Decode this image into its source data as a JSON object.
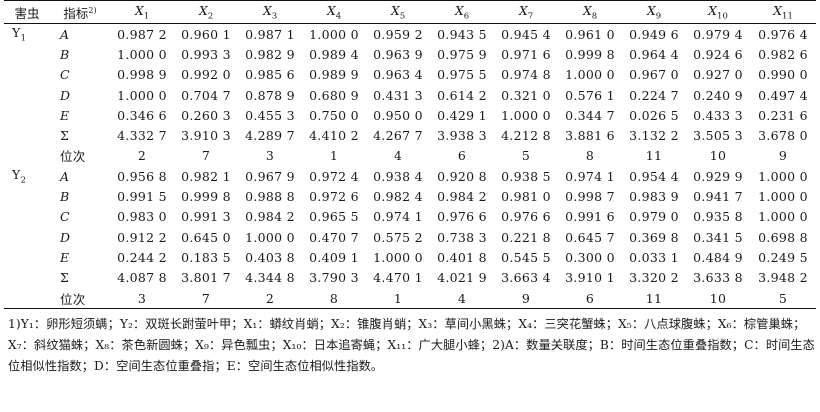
{
  "header": {
    "pest": "害虫",
    "indicator": "指标",
    "indicator_sup": "2)",
    "x_prefix": "X",
    "columns": [
      "1",
      "2",
      "3",
      "4",
      "5",
      "6",
      "7",
      "8",
      "9",
      "10",
      "11"
    ]
  },
  "groups": [
    {
      "pest_letter": "Y",
      "pest_sub": "1",
      "rows": [
        {
          "label": "A",
          "values": [
            "0.987 2",
            "0.960 1",
            "0.987 1",
            "1.000 0",
            "0.959 2",
            "0.943 5",
            "0.945 4",
            "0.961 0",
            "0.949 6",
            "0.979 4",
            "0.976 4"
          ]
        },
        {
          "label": "B",
          "values": [
            "1.000 0",
            "0.993 3",
            "0.982 9",
            "0.989 4",
            "0.963 9",
            "0.975 9",
            "0.971 6",
            "0.999 8",
            "0.964 4",
            "0.924 6",
            "0.982 6"
          ]
        },
        {
          "label": "C",
          "values": [
            "0.998 9",
            "0.992 0",
            "0.985 6",
            "0.989 9",
            "0.963 4",
            "0.975 5",
            "0.974 8",
            "1.000 0",
            "0.967 0",
            "0.927 0",
            "0.990 0"
          ]
        },
        {
          "label": "D",
          "values": [
            "1.000 0",
            "0.704 7",
            "0.878 9",
            "0.680 9",
            "0.431 3",
            "0.614 2",
            "0.321 0",
            "0.576 1",
            "0.224 7",
            "0.240 9",
            "0.497 4"
          ]
        },
        {
          "label": "E",
          "values": [
            "0.346 6",
            "0.260 3",
            "0.455 3",
            "0.750 0",
            "0.950 0",
            "0.429 1",
            "1.000 0",
            "0.344 7",
            "0.026 5",
            "0.433 3",
            "0.231 6"
          ]
        },
        {
          "label": "Σ",
          "values": [
            "4.332 7",
            "3.910 3",
            "4.289 7",
            "4.410 2",
            "4.267 7",
            "3.938 3",
            "4.212 8",
            "3.881 6",
            "3.132 2",
            "3.505 3",
            "3.678 0"
          ]
        },
        {
          "label": "位次",
          "values": [
            "2",
            "7",
            "3",
            "1",
            "4",
            "6",
            "5",
            "8",
            "11",
            "10",
            "9"
          ]
        }
      ]
    },
    {
      "pest_letter": "Y",
      "pest_sub": "2",
      "rows": [
        {
          "label": "A",
          "values": [
            "0.956 8",
            "0.982 1",
            "0.967 9",
            "0.972 4",
            "0.938 4",
            "0.920 8",
            "0.938 5",
            "0.974 1",
            "0.954 4",
            "0.929 9",
            "1.000 0"
          ]
        },
        {
          "label": "B",
          "values": [
            "0.991 5",
            "0.999 8",
            "0.988 8",
            "0.972 6",
            "0.982 4",
            "0.984 2",
            "0.981 0",
            "0.998 7",
            "0.983 9",
            "0.941 7",
            "1.000 0"
          ]
        },
        {
          "label": "C",
          "values": [
            "0.983 0",
            "0.991 3",
            "0.984 2",
            "0.965 5",
            "0.974 1",
            "0.976 6",
            "0.976 6",
            "0.991 6",
            "0.979 0",
            "0.935 8",
            "1.000 0"
          ]
        },
        {
          "label": "D",
          "values": [
            "0.912 2",
            "0.645 0",
            "1.000 0",
            "0.470 7",
            "0.575 2",
            "0.738 3",
            "0.221 8",
            "0.645 7",
            "0.369 8",
            "0.341 5",
            "0.698 8"
          ]
        },
        {
          "label": "E",
          "values": [
            "0.244 2",
            "0.183 5",
            "0.403 8",
            "0.409 1",
            "1.000 0",
            "0.401 8",
            "0.545 5",
            "0.300 0",
            "0.033 1",
            "0.484 9",
            "0.249 5"
          ]
        },
        {
          "label": "Σ",
          "values": [
            "4.087 8",
            "3.801 7",
            "4.344 8",
            "3.790 3",
            "4.470 1",
            "4.021 9",
            "3.663 4",
            "3.910 1",
            "3.320 2",
            "3.633 8",
            "3.948 2"
          ]
        },
        {
          "label": "位次",
          "values": [
            "3",
            "7",
            "2",
            "8",
            "1",
            "4",
            "9",
            "6",
            "11",
            "10",
            "5"
          ]
        }
      ]
    }
  ],
  "footnote": "1)Y₁：卵形短须螨；Y₂：双斑长跗萤叶甲；X₁：蟒纹肖蛸；X₂：锥腹肖蛸；X₃：草间小黑蛛；X₄：三突花蟹蛛；X₅：八点球腹蛛；X₆：棕管巢蛛；X₇：斜纹猫蛛；X₈：茶色新圆蛛；X₉：异色瓢虫；X₁₀：日本追寄蝇；X₁₁：广大腿小蜂；2)A：数量关联度；B：时间生态位重叠指数；C：时间生态位相似性指数；D：空间生态位重叠指；E：空间生态位相似性指数。"
}
